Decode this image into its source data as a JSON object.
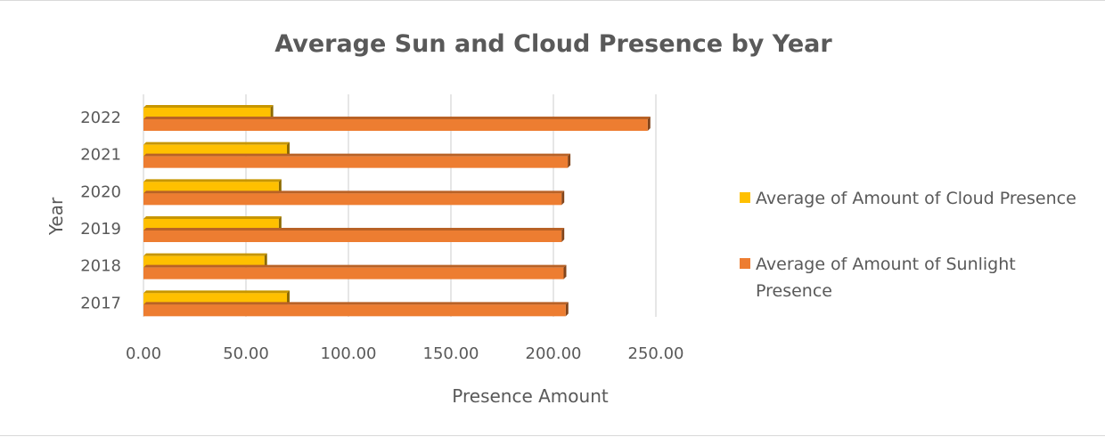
{
  "chart_data": {
    "type": "bar",
    "orientation": "horizontal",
    "title": "Average Sun and Cloud Presence by Year",
    "xlabel": "Presence Amount",
    "ylabel": "Year",
    "categories": [
      "2017",
      "2018",
      "2019",
      "2020",
      "2021",
      "2022"
    ],
    "xlim": [
      0,
      250
    ],
    "x_ticks": [
      "0.00",
      "50.00",
      "100.00",
      "150.00",
      "200.00",
      "250.00"
    ],
    "grid": "vertical",
    "legend_position": "right",
    "series": [
      {
        "name": "Average of Amount of Cloud Presence",
        "name_lines": [
          "Average of Amount of Cloud Presence"
        ],
        "color": "#FFC000",
        "values": [
          70,
          59,
          66,
          66,
          70,
          62
        ]
      },
      {
        "name": "Average of Amount of Sunlight Presence",
        "name_lines": [
          "Average of Amount of Sunlight",
          "Presence"
        ],
        "color": "#ED7D31",
        "values": [
          206,
          205,
          204,
          204,
          207,
          246
        ]
      }
    ]
  }
}
